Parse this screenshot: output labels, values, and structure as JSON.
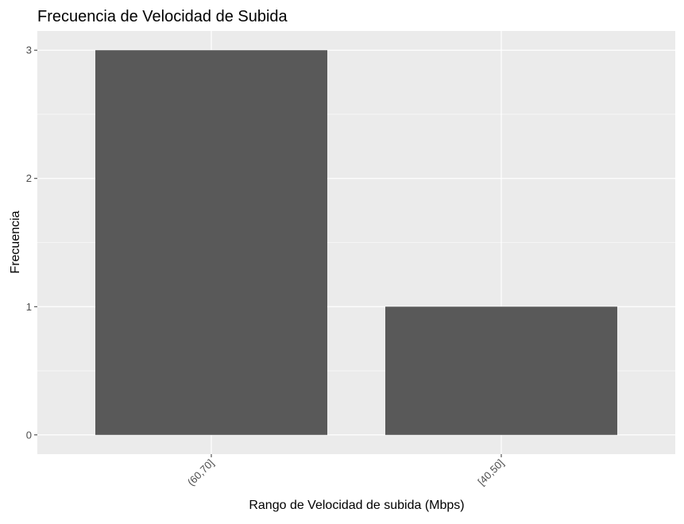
{
  "chart_data": {
    "type": "bar",
    "title": "Frecuencia de Velocidad de Subida",
    "xlabel": "Rango de Velocidad de subida (Mbps)",
    "ylabel": "Frecuencia",
    "categories": [
      "(60,70]",
      "[40,50]"
    ],
    "values": [
      3,
      1
    ],
    "ylim": [
      -0.15,
      3.15
    ],
    "yticks": [
      "0",
      "1",
      "2",
      "3"
    ],
    "grid": true,
    "colors": {
      "panel": "#ebebeb",
      "grid": "#ffffff",
      "bar": "#595959",
      "tick_text": "#4d4d4d"
    }
  }
}
